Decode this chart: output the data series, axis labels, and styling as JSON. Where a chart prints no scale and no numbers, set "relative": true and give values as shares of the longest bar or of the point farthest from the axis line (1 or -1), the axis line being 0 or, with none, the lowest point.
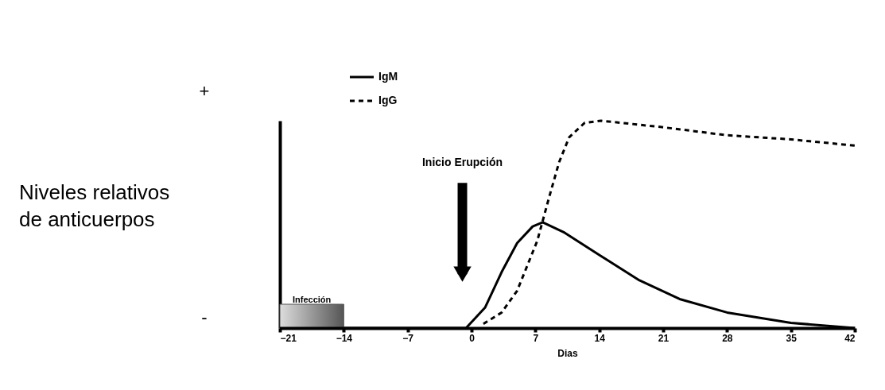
{
  "chart_data": {
    "type": "line",
    "relative": true,
    "xlabel": "Dias",
    "xlim": [
      -21,
      42
    ],
    "xticks": [
      -21,
      -14,
      -7,
      0,
      7,
      14,
      21,
      28,
      35,
      42
    ],
    "grid": false,
    "legend": "top left",
    "marker": "none",
    "series": [
      {
        "name": "IgM",
        "color": "#000000",
        "line_style": "solid",
        "x": [
          -21,
          -0.6,
          1.5,
          3.3,
          5.0,
          6.7,
          7.8,
          10.2,
          14.1,
          18.4,
          22.8,
          28,
          35,
          42
        ],
        "values": [
          0,
          0,
          0.1,
          0.27,
          0.41,
          0.49,
          0.51,
          0.46,
          0.35,
          0.23,
          0.14,
          0.075,
          0.025,
          0
        ]
      },
      {
        "name": "IgG",
        "color": "#000000",
        "line_style": "dashed",
        "x": [
          1.3,
          3.3,
          5.0,
          7.2,
          8.5,
          9.6,
          10.7,
          12.4,
          14.2,
          20.7,
          28,
          35,
          42
        ],
        "values": [
          0.02,
          0.075,
          0.18,
          0.42,
          0.63,
          0.8,
          0.92,
          0.99,
          1.0,
          0.97,
          0.93,
          0.91,
          0.88
        ]
      }
    ],
    "bands": [
      {
        "axis": "x",
        "from": -21,
        "to": -14,
        "label": "Infección",
        "color": "#555555"
      }
    ],
    "annotations": [
      "+",
      "-",
      "Niveles relativos\nde anticuerpos",
      {
        "text": "Inicio Erupción",
        "x": -1,
        "y": 0.26
      }
    ]
  }
}
